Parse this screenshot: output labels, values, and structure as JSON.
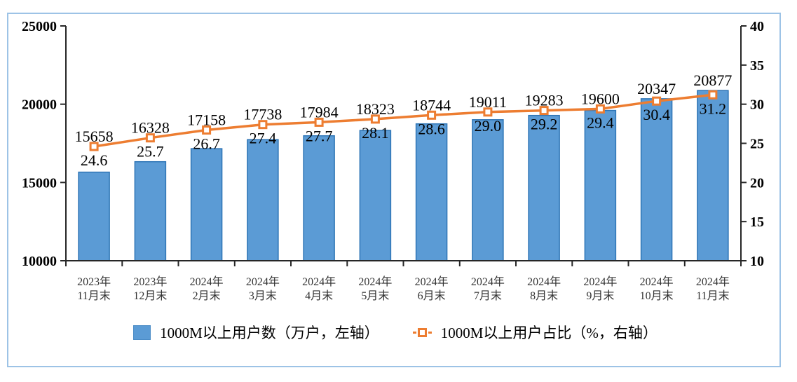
{
  "chart_data": {
    "type": "bar",
    "subtype": "bar+line combo, dual axis",
    "categories": [
      [
        "2023年",
        "11月末"
      ],
      [
        "2023年",
        "12月末"
      ],
      [
        "2024年",
        "2月末"
      ],
      [
        "2024年",
        "3月末"
      ],
      [
        "2024年",
        "4月末"
      ],
      [
        "2024年",
        "5月末"
      ],
      [
        "2024年",
        "6月末"
      ],
      [
        "2024年",
        "7月末"
      ],
      [
        "2024年",
        "8月末"
      ],
      [
        "2024年",
        "9月末"
      ],
      [
        "2024年",
        "10月末"
      ],
      [
        "2024年",
        "11月末"
      ]
    ],
    "series": [
      {
        "name": "1000M以上用户数（万户，左轴）",
        "type": "bar",
        "axis": "left",
        "values": [
          15658,
          16328,
          17158,
          17738,
          17984,
          18323,
          18744,
          19011,
          19283,
          19600,
          20347,
          20877
        ]
      },
      {
        "name": "1000M以上用户占比（%，右轴）",
        "type": "line",
        "axis": "right",
        "values": [
          24.6,
          25.7,
          26.7,
          27.4,
          27.7,
          28.1,
          28.6,
          29.0,
          29.2,
          29.4,
          30.4,
          31.2
        ]
      }
    ],
    "left_axis": {
      "min": 10000,
      "max": 25000,
      "ticks": [
        25000,
        20000,
        15000,
        10000
      ]
    },
    "right_axis": {
      "min": 10,
      "max": 40,
      "ticks": [
        40,
        35,
        30,
        25,
        20,
        15,
        10
      ]
    },
    "grid": false,
    "legend_position": "bottom",
    "title": "",
    "colors": {
      "bar_fill": "#5B9BD5",
      "bar_border": "#2E75B6",
      "line": "#ED7D31",
      "marker_fill": "#FFFFFF",
      "frame_border": "#9DC3E6",
      "axis": "#262626",
      "label_text": "#000000"
    },
    "pct_label_format": "one_decimal"
  }
}
